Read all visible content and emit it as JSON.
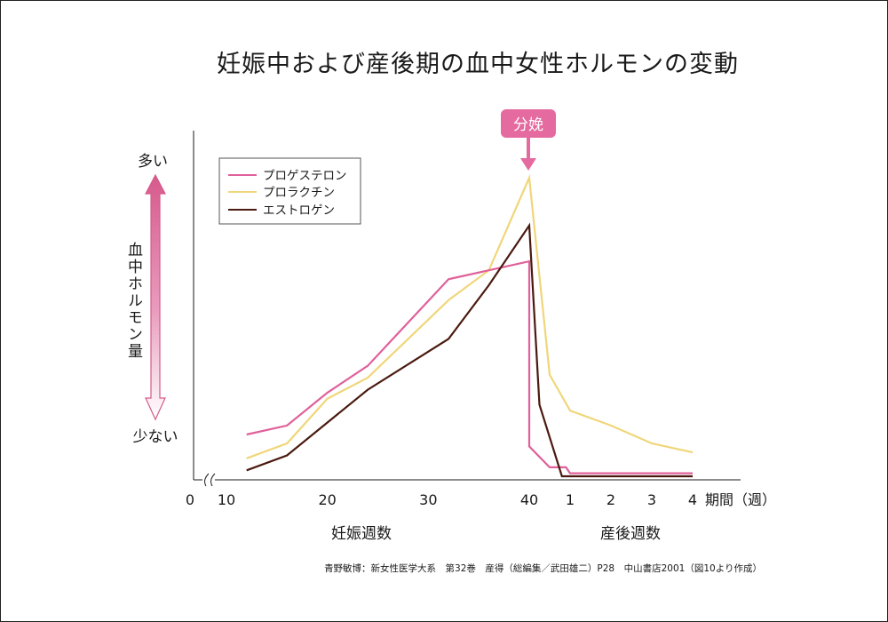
{
  "title": "妊娠中および産後期の血中女性ホルモンの変動",
  "source": "青野敏博：新女性医学大系　第32巻　産得（総編集／武田雄二）P28　中山書店2001（図10より作成）",
  "colors": {
    "progesterone": "#e0609a",
    "prolactin": "#f0d67a",
    "estrogen": "#4a1a10",
    "accent": "#e46aa0"
  },
  "chart_data": {
    "type": "line",
    "title": "妊娠中および産後期の血中女性ホルモンの変動",
    "y_axis": {
      "label": "血中ホルモン量",
      "top_label": "多い",
      "bottom_label": "少ない",
      "units": "relative"
    },
    "x_axis": {
      "pregnancy": {
        "label": "妊娠週数",
        "origin_tick": "0",
        "ticks": [
          "10",
          "20",
          "30",
          "40"
        ],
        "range": [
          10,
          40
        ]
      },
      "postpartum": {
        "label": "産後週数",
        "ticks": [
          "1",
          "2",
          "3",
          "4"
        ],
        "range": [
          0,
          4
        ]
      },
      "unit_label": "期間（週）"
    },
    "annotation": {
      "text": "分娩",
      "at_week": 40
    },
    "legend": [
      "プロゲステロン",
      "プロラクチン",
      "エストロゲン"
    ],
    "legend_position": "top-left",
    "series": [
      {
        "name": "プロゲステロン",
        "color": "#e0609a",
        "points": [
          {
            "phase": "pregnancy",
            "week": 12,
            "value": 0.14
          },
          {
            "phase": "pregnancy",
            "week": 16,
            "value": 0.17
          },
          {
            "phase": "pregnancy",
            "week": 20,
            "value": 0.28
          },
          {
            "phase": "pregnancy",
            "week": 24,
            "value": 0.37
          },
          {
            "phase": "pregnancy",
            "week": 32,
            "value": 0.66
          },
          {
            "phase": "pregnancy",
            "week": 36,
            "value": 0.69
          },
          {
            "phase": "pregnancy",
            "week": 40,
            "value": 0.72
          },
          {
            "phase": "postpartum",
            "week": 0,
            "value": 0.1
          },
          {
            "phase": "postpartum",
            "week": 0.5,
            "value": 0.03
          },
          {
            "phase": "postpartum",
            "week": 0.9,
            "value": 0.03
          },
          {
            "phase": "postpartum",
            "week": 1.0,
            "value": 0.01
          },
          {
            "phase": "postpartum",
            "week": 4,
            "value": 0.01
          }
        ]
      },
      {
        "name": "プロラクチン",
        "color": "#f0d67a",
        "points": [
          {
            "phase": "pregnancy",
            "week": 12,
            "value": 0.06
          },
          {
            "phase": "pregnancy",
            "week": 16,
            "value": 0.11
          },
          {
            "phase": "pregnancy",
            "week": 20,
            "value": 0.26
          },
          {
            "phase": "pregnancy",
            "week": 24,
            "value": 0.33
          },
          {
            "phase": "pregnancy",
            "week": 32,
            "value": 0.59
          },
          {
            "phase": "pregnancy",
            "week": 36,
            "value": 0.69
          },
          {
            "phase": "pregnancy",
            "week": 40,
            "value": 1.0
          },
          {
            "phase": "postpartum",
            "week": 0.5,
            "value": 0.34
          },
          {
            "phase": "postpartum",
            "week": 1,
            "value": 0.22
          },
          {
            "phase": "postpartum",
            "week": 2,
            "value": 0.17
          },
          {
            "phase": "postpartum",
            "week": 3,
            "value": 0.11
          },
          {
            "phase": "postpartum",
            "week": 4,
            "value": 0.08
          }
        ]
      },
      {
        "name": "エストロゲン",
        "color": "#4a1a10",
        "points": [
          {
            "phase": "pregnancy",
            "week": 12,
            "value": 0.02
          },
          {
            "phase": "pregnancy",
            "week": 16,
            "value": 0.07
          },
          {
            "phase": "pregnancy",
            "week": 20,
            "value": 0.18
          },
          {
            "phase": "pregnancy",
            "week": 24,
            "value": 0.29
          },
          {
            "phase": "pregnancy",
            "week": 32,
            "value": 0.46
          },
          {
            "phase": "pregnancy",
            "week": 36,
            "value": 0.64
          },
          {
            "phase": "pregnancy",
            "week": 40,
            "value": 0.84
          },
          {
            "phase": "postpartum",
            "week": 0.25,
            "value": 0.24
          },
          {
            "phase": "postpartum",
            "week": 0.8,
            "value": 0.0
          },
          {
            "phase": "postpartum",
            "week": 4,
            "value": 0.0
          }
        ]
      }
    ]
  }
}
